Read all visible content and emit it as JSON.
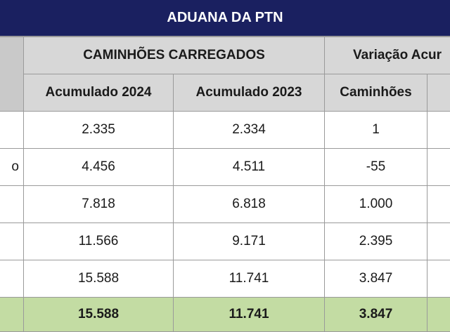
{
  "title": "ADUANA DA PTN",
  "header": {
    "group_loaded": "CAMINHÕES CARREGADOS",
    "group_variation": "Variação Acur",
    "col_2024": "Acumulado 2024",
    "col_2023": "Acumulado 2023",
    "col_trucks": "Caminhões"
  },
  "rows": [
    {
      "label": "",
      "acc2024": "2.335",
      "acc2023": "2.334",
      "trucks": "1"
    },
    {
      "label": "o",
      "acc2024": "4.456",
      "acc2023": "4.511",
      "trucks": "-55"
    },
    {
      "label": "",
      "acc2024": "7.818",
      "acc2023": "6.818",
      "trucks": "1.000"
    },
    {
      "label": "",
      "acc2024": "11.566",
      "acc2023": "9.171",
      "trucks": "2.395"
    },
    {
      "label": "",
      "acc2024": "15.588",
      "acc2023": "11.741",
      "trucks": "3.847"
    }
  ],
  "total": {
    "acc2024": "15.588",
    "acc2023": "11.741",
    "trucks": "3.847"
  },
  "colors": {
    "title_bg": "#1a2060",
    "header_bg": "#d7d7d7",
    "total_bg": "#c3dca3"
  }
}
